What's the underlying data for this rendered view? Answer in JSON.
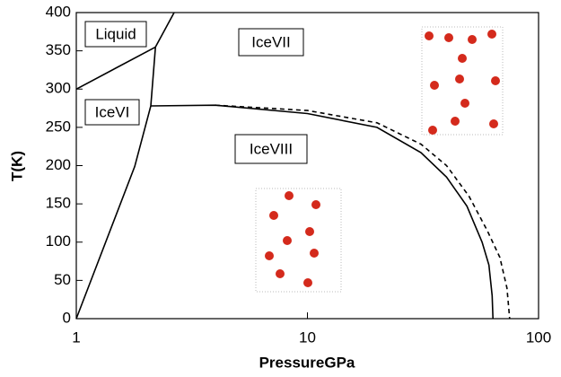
{
  "chart_data": {
    "type": "line",
    "xlabel": "PressureGPa",
    "ylabel": "T(K)",
    "xscale": "log",
    "xlim": [
      1,
      100
    ],
    "xticks": [
      1,
      10,
      100
    ],
    "ylim": [
      0,
      400
    ],
    "yticks": [
      0,
      50,
      100,
      150,
      200,
      250,
      300,
      350,
      400
    ],
    "annotations": [
      "Liquid",
      "IceVI",
      "IceVII",
      "IceVIII"
    ],
    "series": [
      {
        "color": "#000000",
        "dash": false,
        "x": [
          1,
          2.2
        ],
        "values": [
          300,
          355
        ]
      },
      {
        "color": "#000000",
        "dash": false,
        "x": [
          2.2,
          2.65
        ],
        "values": [
          355,
          400
        ]
      },
      {
        "color": "#000000",
        "dash": false,
        "x": [
          2.2,
          2.1
        ],
        "values": [
          355,
          278
        ]
      },
      {
        "color": "#000000",
        "dash": false,
        "x": [
          2.1,
          1.79,
          1
        ],
        "values": [
          278,
          199,
          0
        ]
      },
      {
        "color": "#000000",
        "dash": false,
        "x": [
          2.1,
          4,
          10,
          20,
          31,
          40,
          49,
          57,
          61,
          63,
          63.5
        ],
        "values": [
          278,
          279,
          268,
          250,
          217,
          185,
          147,
          100,
          70,
          30,
          0
        ]
      },
      {
        "color": "#000000",
        "dash": true,
        "x": [
          4,
          10,
          20,
          31,
          40,
          50,
          60,
          68,
          73,
          75
        ],
        "values": [
          279,
          272,
          256,
          228,
          200,
          160,
          115,
          80,
          40,
          0
        ]
      }
    ]
  }
}
